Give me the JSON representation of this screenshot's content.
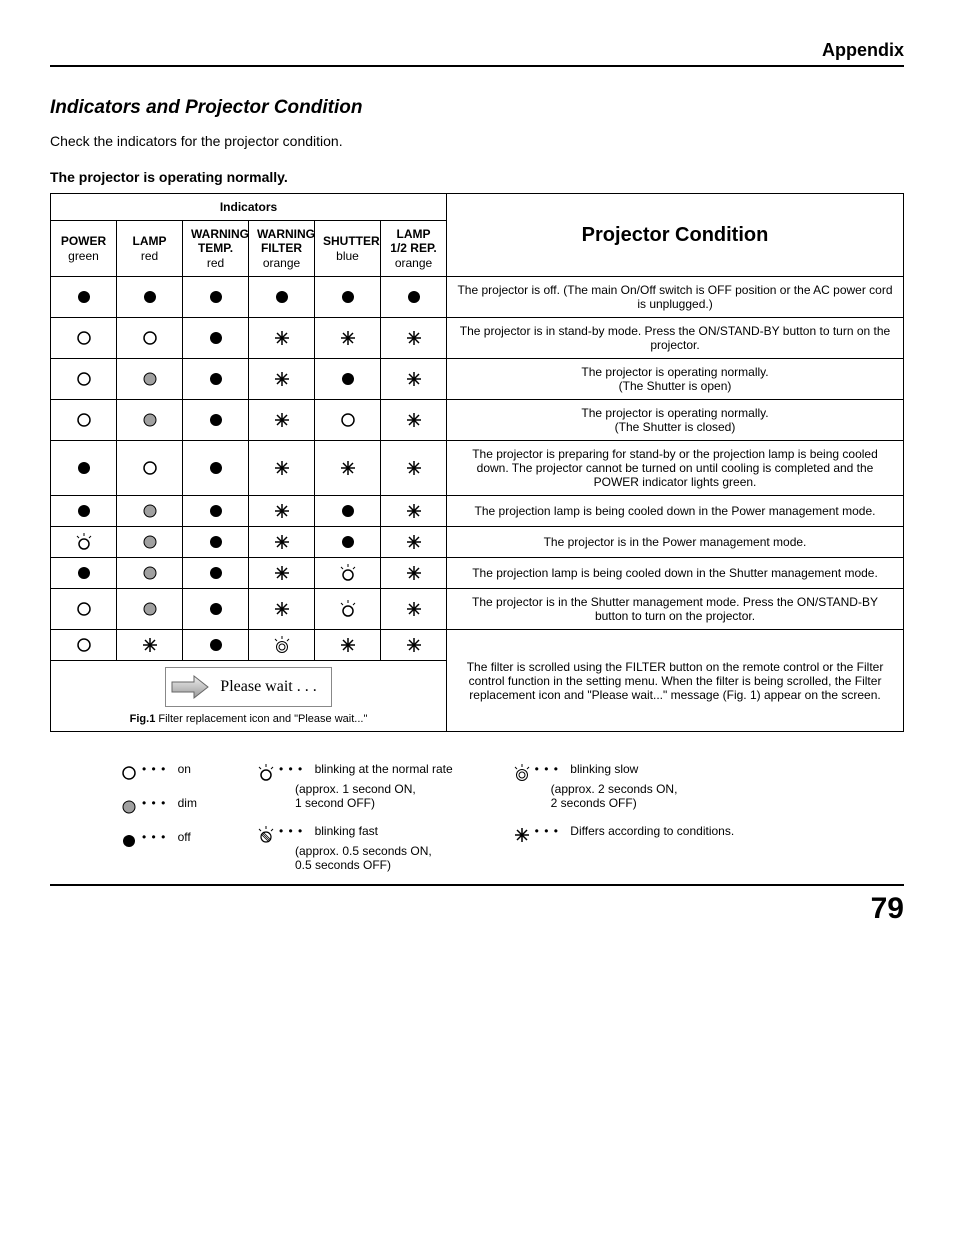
{
  "header": {
    "appendix": "Appendix"
  },
  "section": {
    "title": "Indicators and Projector Condition",
    "intro": "Check the indicators for the projector condition.",
    "subheading": "The projector is operating normally."
  },
  "table": {
    "indicators_title": "Indicators",
    "condition_title": "Projector Condition",
    "cols": [
      {
        "top": "POWER",
        "bot": "green"
      },
      {
        "top": "LAMP",
        "bot": "red"
      },
      {
        "top": "WARNING TEMP.",
        "bot": "red"
      },
      {
        "top": "WARNING FILTER",
        "bot": "orange"
      },
      {
        "top": "SHUTTER",
        "bot": "blue"
      },
      {
        "top": "LAMP 1/2 REP.",
        "bot": "orange"
      }
    ],
    "rows": [
      {
        "ind": [
          "off",
          "off",
          "off",
          "off",
          "off",
          "off"
        ],
        "cond": "The projector is off. (The main On/Off switch is OFF position or the AC power cord is unplugged.)"
      },
      {
        "ind": [
          "on",
          "on",
          "off",
          "star",
          "star",
          "star"
        ],
        "cond": "The projector is in stand-by mode. Press the ON/STAND-BY button to turn on the projector."
      },
      {
        "ind": [
          "on",
          "dim",
          "off",
          "star",
          "off",
          "star"
        ],
        "cond": "The projector is operating normally.\n(The Shutter is open)"
      },
      {
        "ind": [
          "on",
          "dim",
          "off",
          "star",
          "on",
          "star"
        ],
        "cond": "The projector is operating normally.\n(The Shutter is closed)"
      },
      {
        "ind": [
          "off",
          "on",
          "off",
          "star",
          "star",
          "star"
        ],
        "cond": "The projector is preparing for stand-by or the projection lamp is being cooled down. The projector cannot be turned on until cooling is completed and the POWER indicator lights green."
      },
      {
        "ind": [
          "off",
          "dim",
          "off",
          "star",
          "off",
          "star"
        ],
        "cond": "The projection lamp is being cooled down in the Power management mode."
      },
      {
        "ind": [
          "blink",
          "dim",
          "off",
          "star",
          "off",
          "star"
        ],
        "cond": "The projector is in the Power management mode."
      },
      {
        "ind": [
          "off",
          "dim",
          "off",
          "star",
          "blink",
          "star"
        ],
        "cond": "The projection lamp is being cooled down in the Shutter management mode."
      },
      {
        "ind": [
          "on",
          "dim",
          "off",
          "star",
          "blink",
          "star"
        ],
        "cond": "The projector is in the Shutter management mode. Press the ON/STAND-BY button to turn on the projector."
      },
      {
        "ind": [
          "on",
          "star",
          "off",
          "blinkslow",
          "star",
          "star"
        ],
        "cond": "The filter is scrolled using the FILTER button on the remote control or the Filter control function in the setting menu. When the filter is being scrolled, the Filter replacement icon and \"Please wait...\" message (Fig. 1) appear on the screen.",
        "merged": true
      }
    ],
    "please_wait": {
      "label": "Please wait . . .",
      "caption_bold": "Fig.1",
      "caption_rest": "  Filter replacement icon and \"Please wait...\""
    }
  },
  "legend": {
    "dots": "• • •",
    "on": "on",
    "dim": "dim",
    "off": "off",
    "blink_normal": "blinking at the normal rate",
    "blink_normal_sub": "(approx. 1 second ON,\n1 second OFF)",
    "blink_fast": "blinking fast",
    "blink_fast_sub": "(approx. 0.5 seconds ON,\n0.5 seconds OFF)",
    "blink_slow": "blinking slow",
    "blink_slow_sub": "(approx. 2 seconds ON,\n2 seconds OFF)",
    "differs": "Differs according to conditions."
  },
  "page_number": "79",
  "colors": {
    "off": "#000000",
    "on_stroke": "#000000",
    "dim_fill": "#a0a0a0",
    "star": "#000000"
  },
  "col_widths": [
    "66",
    "66",
    "66",
    "66",
    "66",
    "66",
    "444"
  ]
}
